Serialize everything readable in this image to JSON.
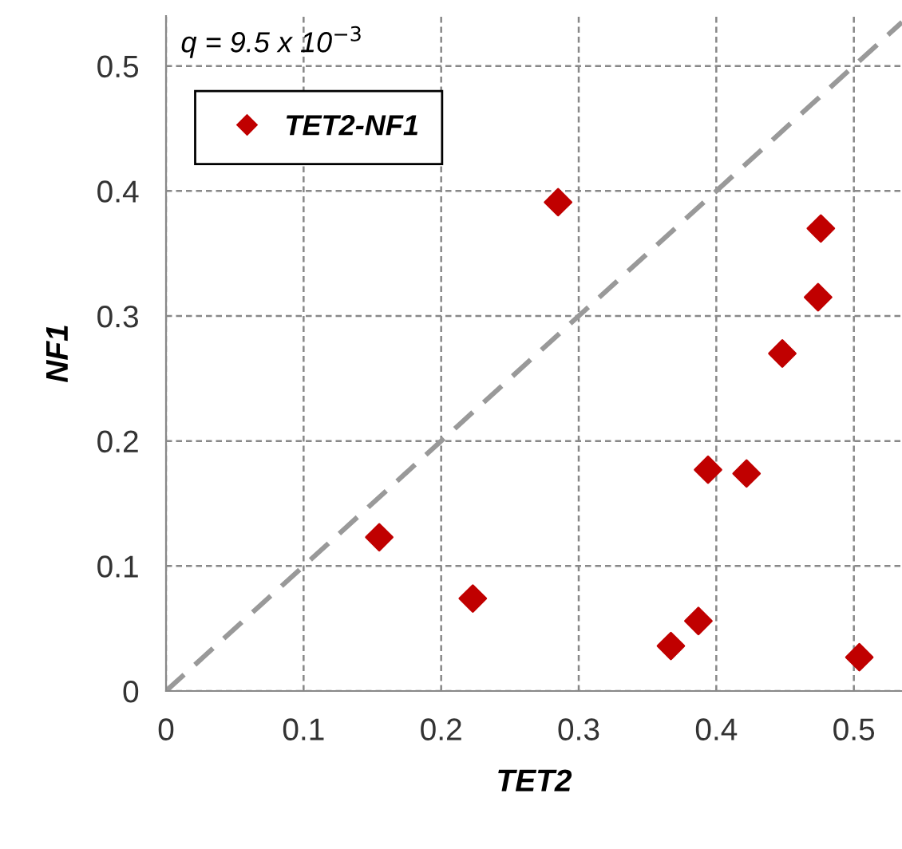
{
  "chart_data": {
    "type": "scatter",
    "xlabel": "TET2",
    "ylabel": "NF1",
    "annotations": [
      "q = 9.5 x 10$^{−3}$"
    ],
    "series": [
      {
        "name": "TET2-NF1",
        "color": "#c00000",
        "marker": "diamond",
        "x": [
          0.285,
          0.476,
          0.474,
          0.448,
          0.394,
          0.422,
          0.155,
          0.223,
          0.367,
          0.387,
          0.504
        ],
        "values": [
          0.391,
          0.37,
          0.315,
          0.27,
          0.177,
          0.174,
          0.123,
          0.074,
          0.036,
          0.056,
          0.027
        ]
      },
      {
        "type": "line",
        "color": "#999999",
        "line_style": "dashed",
        "marker": "none",
        "x": [
          0,
          0.535
        ],
        "values": [
          0,
          0.535
        ]
      }
    ],
    "xlim": [
      0,
      0.535
    ],
    "ylim": [
      0,
      0.54
    ],
    "xticks": [
      0,
      0.1,
      0.2,
      0.3,
      0.4,
      0.5
    ],
    "yticks": [
      0,
      0.1,
      0.2,
      0.3,
      0.4,
      0.5
    ],
    "grid": true,
    "legend": "top left"
  }
}
